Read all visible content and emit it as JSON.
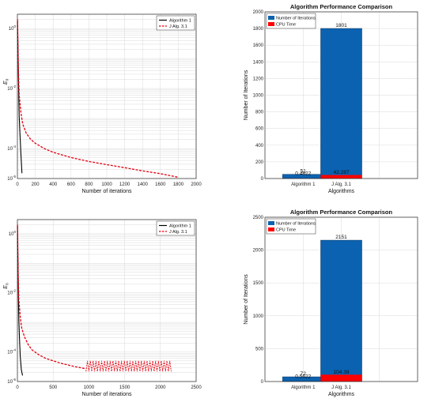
{
  "chart_data": [
    {
      "type": "line",
      "title": "",
      "xlabel": "Number of iterations",
      "ylabel": "E_n",
      "ylabel_main": "E",
      "ylabel_sub": "n",
      "yscale": "log",
      "xlim": [
        0,
        2000
      ],
      "ylim": [
        1e-05,
        3
      ],
      "xticks": [
        "0",
        "200",
        "400",
        "600",
        "800",
        "1000",
        "1200",
        "1400",
        "1600",
        "1800",
        "2000"
      ],
      "ytick_labels": [
        {
          "base": "10",
          "exp": "-5",
          "value": 1e-05
        },
        {
          "base": "10",
          "exp": "-4",
          "value": 0.0001
        },
        {
          "base": "10",
          "exp": "-2",
          "value": 0.01
        },
        {
          "base": "10",
          "exp": "0",
          "value": 1
        }
      ],
      "grid": true,
      "legend": "top-right",
      "series": [
        {
          "name": "Algorithm 1",
          "color": "#000000",
          "style": "solid",
          "x": [
            1,
            3,
            6,
            10,
            15,
            20,
            30,
            40,
            51
          ],
          "y": [
            2.0,
            0.9,
            0.25,
            0.05,
            0.006,
            0.0012,
            0.00025,
            6e-05,
            1.5e-05
          ]
        },
        {
          "name": "J Alg. 3.1",
          "color": "#e3000f",
          "style": "dashed",
          "x": [
            1,
            5,
            10,
            20,
            40,
            60,
            100,
            150,
            200,
            300,
            400,
            600,
            800,
            1000,
            1200,
            1400,
            1600,
            1801
          ],
          "y": [
            2.0,
            0.5,
            0.05,
            0.006,
            0.0015,
            0.00065,
            0.00032,
            0.0002,
            0.00015,
            0.0001,
            7.5e-05,
            5e-05,
            3.7e-05,
            2.9e-05,
            2.3e-05,
            1.8e-05,
            1.45e-05,
            1.1e-05
          ]
        }
      ]
    },
    {
      "type": "bar",
      "title": "Algorithm Performance Comparison",
      "xlabel": "Algorithms",
      "ylabel": "Number of Iterations",
      "categories": [
        "Algorithm 1",
        "J Alg. 3.1"
      ],
      "ylim": [
        0,
        2000
      ],
      "yticks": [
        "0",
        "200",
        "400",
        "600",
        "800",
        "1000",
        "1200",
        "1400",
        "1600",
        "1800",
        "2000"
      ],
      "grid": true,
      "legend": "top-left",
      "series": [
        {
          "name": "Number of Iterations",
          "color": "#0b62b0",
          "values": [
            51,
            1801
          ],
          "labels": [
            "51",
            "1801"
          ]
        },
        {
          "name": "CPU Time",
          "color": "#ff0000",
          "values": [
            0.4822,
            42.287
          ],
          "labels": [
            "0.4822",
            "42.287"
          ]
        }
      ]
    },
    {
      "type": "line",
      "title": "",
      "xlabel": "Number of iterations",
      "ylabel": "E_n",
      "ylabel_main": "E",
      "ylabel_sub": "n",
      "yscale": "log",
      "xlim": [
        0,
        2500
      ],
      "ylim": [
        1e-05,
        3
      ],
      "xticks": [
        "0",
        "500",
        "1000",
        "1500",
        "2000",
        "2500"
      ],
      "ytick_labels": [
        {
          "base": "10",
          "exp": "-5",
          "value": 1e-05
        },
        {
          "base": "10",
          "exp": "-4",
          "value": 0.0001
        },
        {
          "base": "10",
          "exp": "-2",
          "value": 0.01
        },
        {
          "base": "10",
          "exp": "0",
          "value": 1
        }
      ],
      "grid": true,
      "legend": "top-right",
      "series": [
        {
          "name": "Algorithm 1",
          "color": "#000000",
          "style": "solid",
          "x": [
            1,
            3,
            6,
            10,
            15,
            20,
            30,
            40,
            55,
            72
          ],
          "y": [
            2.0,
            0.9,
            0.25,
            0.05,
            0.006,
            0.0012,
            0.00025,
            7e-05,
            2.5e-05,
            1.6e-05
          ]
        },
        {
          "name": "J Alg. 3.1",
          "color": "#e3000f",
          "style": "dashed",
          "x": [
            1,
            5,
            10,
            20,
            40,
            60,
            100,
            150,
            200,
            300,
            400,
            600,
            800,
            960
          ],
          "y": [
            2.0,
            0.5,
            0.05,
            0.006,
            0.0015,
            0.00065,
            0.00032,
            0.00018,
            0.00012,
            8e-05,
            6e-05,
            4.2e-05,
            3.2e-05,
            2.7e-05
          ],
          "oscillation": {
            "x_start": 960,
            "x_end": 2151,
            "y_low": 2.2e-05,
            "y_high": 5e-05
          }
        }
      ]
    },
    {
      "type": "bar",
      "title": "Algorithm Performance Comparison",
      "xlabel": "Algorithms",
      "ylabel": "Number of Iterations",
      "categories": [
        "Algorithm 1",
        "J Alg. 3.1"
      ],
      "ylim": [
        0,
        2500
      ],
      "yticks": [
        "0",
        "500",
        "1000",
        "1500",
        "2000",
        "2500"
      ],
      "grid": true,
      "legend": "top-left",
      "series": [
        {
          "name": "Number of Iterations",
          "color": "#0b62b0",
          "values": [
            72,
            2151
          ],
          "labels": [
            "72",
            "2151"
          ]
        },
        {
          "name": "CPU Time",
          "color": "#ff0000",
          "values": [
            0.5622,
            104.39
          ],
          "labels": [
            "0.5622",
            "104.39"
          ]
        }
      ]
    }
  ]
}
